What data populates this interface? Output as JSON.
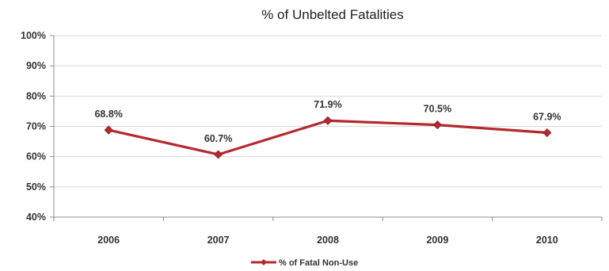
{
  "chart_data": {
    "type": "line",
    "title": "% of Unbelted Fatalities",
    "categories": [
      "2006",
      "2007",
      "2008",
      "2009",
      "2010"
    ],
    "series": [
      {
        "name": "% of Fatal Non-Use",
        "values": [
          68.8,
          60.7,
          71.9,
          70.5,
          67.9
        ],
        "labels": [
          "68.8%",
          "60.7%",
          "71.9%",
          "70.5%",
          "67.9%"
        ],
        "color": "#b5282e"
      }
    ],
    "ylim": [
      40,
      100
    ],
    "yticks": [
      "40%",
      "50%",
      "60%",
      "70%",
      "80%",
      "90%",
      "100%"
    ],
    "ytick_values": [
      40,
      50,
      60,
      70,
      80,
      90,
      100
    ],
    "grid": true,
    "legend": "bottom",
    "marker": "diamond"
  }
}
